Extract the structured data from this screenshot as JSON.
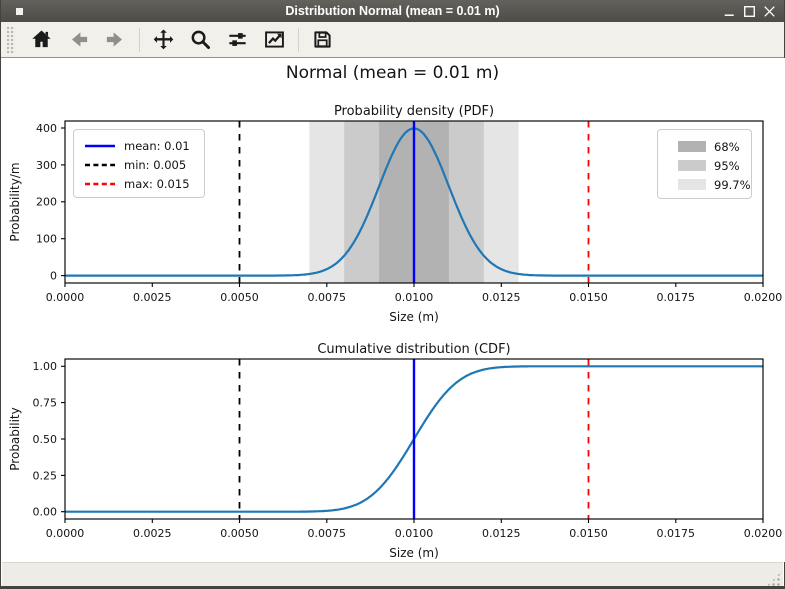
{
  "window": {
    "title": "Distribution Normal (mean = 0.01 m)",
    "controls": [
      "minimize",
      "maximize",
      "close"
    ]
  },
  "toolbar": {
    "buttons": [
      {
        "icon": "home-icon",
        "enabled": true
      },
      {
        "icon": "back-icon",
        "enabled": false
      },
      {
        "icon": "forward-icon",
        "enabled": false
      },
      {
        "icon": "pan-icon",
        "enabled": true
      },
      {
        "icon": "zoom-icon",
        "enabled": true
      },
      {
        "icon": "subplots-icon",
        "enabled": true
      },
      {
        "icon": "customize-icon",
        "enabled": true
      },
      {
        "icon": "save-icon",
        "enabled": true
      }
    ]
  },
  "figure": {
    "suptitle": "Normal (mean = 0.01 m)"
  },
  "status_bar": {
    "text": ""
  },
  "chart_data": [
    {
      "type": "line",
      "title": "Probability density (PDF)",
      "xlabel": "Size (m)",
      "ylabel": "Probability/m",
      "xlim": [
        0,
        0.02
      ],
      "ylim": [
        -20,
        419
      ],
      "xticks": [
        0,
        0.0025,
        0.005,
        0.0075,
        0.01,
        0.0125,
        0.015,
        0.0175,
        0.02
      ],
      "xtick_labels": [
        "0.0000",
        "0.0025",
        "0.0050",
        "0.0075",
        "0.0100",
        "0.0125",
        "0.0150",
        "0.0175",
        "0.0200"
      ],
      "yticks": [
        0,
        100,
        200,
        300,
        400
      ],
      "ytick_labels": [
        "0",
        "100",
        "200",
        "300",
        "400"
      ],
      "grid": false,
      "series": [
        {
          "name": "pdf",
          "curve": "pdf",
          "distribution": "normal",
          "mean": 0.01,
          "sigma": 0.001,
          "peak_value": 398.94,
          "color": "#1f77b4"
        }
      ],
      "vlines": [
        {
          "name": "mean",
          "label": "mean: 0.01",
          "x": 0.01,
          "color": "#0000ff",
          "style": "solid"
        },
        {
          "name": "min",
          "label": "min: 0.005",
          "x": 0.005,
          "color": "#000000",
          "style": "dashed"
        },
        {
          "name": "max",
          "label": "max: 0.015",
          "x": 0.015,
          "color": "#ff0000",
          "style": "dashed"
        }
      ],
      "bands": [
        {
          "label": "68%",
          "from": 0.009,
          "to": 0.011,
          "color": "#b2b2b2"
        },
        {
          "label": "95%",
          "from": 0.008,
          "to": 0.012,
          "color": "#cbcbcb"
        },
        {
          "label": "99.7%",
          "from": 0.007,
          "to": 0.013,
          "color": "#e5e5e5"
        }
      ],
      "legend_left_position": "upper left",
      "legend_right_position": "upper right"
    },
    {
      "type": "line",
      "title": "Cumulative distribution (CDF)",
      "xlabel": "Size (m)",
      "ylabel": "Probability",
      "xlim": [
        0,
        0.02
      ],
      "ylim": [
        -0.05,
        1.05
      ],
      "xticks": [
        0,
        0.0025,
        0.005,
        0.0075,
        0.01,
        0.0125,
        0.015,
        0.0175,
        0.02
      ],
      "xtick_labels": [
        "0.0000",
        "0.0025",
        "0.0050",
        "0.0075",
        "0.0100",
        "0.0125",
        "0.0150",
        "0.0175",
        "0.0200"
      ],
      "yticks": [
        0,
        0.25,
        0.5,
        0.75,
        1.0
      ],
      "ytick_labels": [
        "0.00",
        "0.25",
        "0.50",
        "0.75",
        "1.00"
      ],
      "grid": false,
      "series": [
        {
          "name": "cdf",
          "curve": "cdf",
          "distribution": "normal",
          "mean": 0.01,
          "sigma": 0.001,
          "color": "#1f77b4"
        }
      ],
      "vlines": [
        {
          "name": "mean",
          "label": "mean: 0.01",
          "x": 0.01,
          "color": "#0000ff",
          "style": "solid"
        },
        {
          "name": "min",
          "label": "min: 0.005",
          "x": 0.005,
          "color": "#000000",
          "style": "dashed"
        },
        {
          "name": "max",
          "label": "max: 0.015",
          "x": 0.015,
          "color": "#ff0000",
          "style": "dashed"
        }
      ],
      "bands": []
    }
  ]
}
